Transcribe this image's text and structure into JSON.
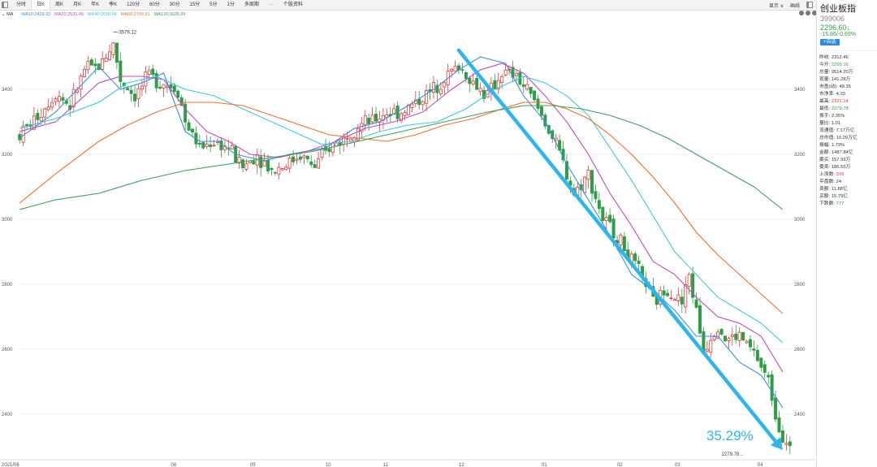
{
  "toolbar": {
    "tabs": [
      "分时",
      "日K",
      "周K",
      "月K",
      "年K",
      "季K",
      "120分",
      "60分",
      "30分",
      "15分",
      "5分",
      "1分",
      "多周期",
      "···",
      "个股资料"
    ],
    "active_index": 1,
    "right_items": [
      "显示 ∨",
      "画线"
    ]
  },
  "indicator": "MA",
  "ma_legend": [
    {
      "label": "MA10:2429.32",
      "color": "#3a8fd9"
    },
    {
      "label": "MA20:2531.49",
      "color": "#c04cc0"
    },
    {
      "label": "MA40:2618.94",
      "color": "#40c8e0"
    },
    {
      "label": "MA60:2709.31",
      "color": "#f07030"
    },
    {
      "label": "MA120:3026.99",
      "color": "#3ea05a"
    }
  ],
  "side": {
    "name": "创业板指",
    "code": "399006",
    "price": "2296.60↓",
    "change": "-15.86/-0.69%",
    "button": "+自选",
    "stats": [
      {
        "label": "昨收:",
        "value": "2312.46",
        "color": "normal"
      },
      {
        "label": "今开:",
        "value": "2299.16",
        "color": "green"
      },
      {
        "label": "总量:",
        "value": "9514.20万",
        "color": "normal"
      },
      {
        "label": "现量:",
        "value": "141.28万",
        "color": "normal"
      },
      {
        "label": "市盈(动):",
        "value": "48.35",
        "color": "normal"
      },
      {
        "label": "市净率:",
        "value": "4.33",
        "color": "normal"
      },
      {
        "label": "最高:",
        "value": "2321.14",
        "color": "red"
      },
      {
        "label": "最低:",
        "value": "2279.78",
        "color": "green"
      },
      {
        "label": "换手:",
        "value": "2.35%",
        "color": "normal"
      },
      {
        "label": "量比:",
        "value": "1.01",
        "color": "normal"
      },
      {
        "label": "流通值:",
        "value": "7.17万亿",
        "color": "normal"
      },
      {
        "label": "总市值:",
        "value": "10.20万亿",
        "color": "normal"
      },
      {
        "label": "振幅:",
        "value": "1.79%",
        "color": "normal"
      },
      {
        "label": "金额:",
        "value": "1487.84亿",
        "color": "normal"
      },
      {
        "label": "委买:",
        "value": "157.99万",
        "color": "normal"
      },
      {
        "label": "委卖:",
        "value": "186.55万",
        "color": "normal"
      },
      {
        "label": "上涨数:",
        "value": "339",
        "color": "red"
      },
      {
        "label": "平盘数:",
        "value": "24",
        "color": "normal"
      },
      {
        "label": "卖额:",
        "value": "11.88亿",
        "color": "normal"
      },
      {
        "label": "买额:",
        "value": "15.79亿",
        "color": "normal"
      },
      {
        "label": "下跌数:",
        "value": "777",
        "color": "green"
      }
    ]
  },
  "chart_data": {
    "type": "candlestick",
    "y_ticks": [
      2400,
      2600,
      2800,
      3000,
      3200,
      3400
    ],
    "ylim": [
      2270,
      3620
    ],
    "x_ticks": [
      "2021/06",
      "08",
      "09",
      "10",
      "11",
      "12",
      "01",
      "02",
      "03",
      "04"
    ],
    "x_tick_index": [
      0,
      42,
      64,
      85,
      101,
      122,
      145,
      166,
      182,
      205
    ],
    "bars_count": 215,
    "high_annotation": "3576.12",
    "low_annotation": "2279.78→",
    "trend_label": "35.29%",
    "trend_start": {
      "index": 122,
      "value": 3520
    },
    "trend_end": {
      "index": 212,
      "value": 2290
    },
    "colors": {
      "up": "#e03c3c",
      "down": "#2e9e46",
      "trend": "#2eb4ef"
    },
    "ma_anchors": {
      "MA10": [
        [
          0,
          3250
        ],
        [
          10,
          3330
        ],
        [
          22,
          3470
        ],
        [
          28,
          3400
        ],
        [
          34,
          3420
        ],
        [
          40,
          3450
        ],
        [
          46,
          3270
        ],
        [
          50,
          3240
        ],
        [
          55,
          3240
        ],
        [
          60,
          3200
        ],
        [
          68,
          3180
        ],
        [
          75,
          3200
        ],
        [
          85,
          3220
        ],
        [
          93,
          3280
        ],
        [
          100,
          3300
        ],
        [
          108,
          3350
        ],
        [
          115,
          3400
        ],
        [
          122,
          3460
        ],
        [
          128,
          3500
        ],
        [
          135,
          3480
        ],
        [
          140,
          3380
        ],
        [
          146,
          3300
        ],
        [
          152,
          3170
        ],
        [
          158,
          3060
        ],
        [
          164,
          2950
        ],
        [
          170,
          2830
        ],
        [
          176,
          2780
        ],
        [
          182,
          2720
        ],
        [
          188,
          2640
        ],
        [
          194,
          2640
        ],
        [
          200,
          2560
        ],
        [
          206,
          2520
        ],
        [
          212,
          2420
        ]
      ],
      "MA20": [
        [
          0,
          3270
        ],
        [
          10,
          3300
        ],
        [
          22,
          3420
        ],
        [
          28,
          3440
        ],
        [
          34,
          3440
        ],
        [
          40,
          3430
        ],
        [
          46,
          3340
        ],
        [
          52,
          3270
        ],
        [
          58,
          3240
        ],
        [
          64,
          3200
        ],
        [
          72,
          3190
        ],
        [
          80,
          3210
        ],
        [
          88,
          3240
        ],
        [
          96,
          3280
        ],
        [
          104,
          3300
        ],
        [
          112,
          3330
        ],
        [
          120,
          3400
        ],
        [
          128,
          3460
        ],
        [
          134,
          3480
        ],
        [
          140,
          3450
        ],
        [
          146,
          3380
        ],
        [
          152,
          3300
        ],
        [
          158,
          3200
        ],
        [
          164,
          3080
        ],
        [
          170,
          2980
        ],
        [
          176,
          2870
        ],
        [
          182,
          2830
        ],
        [
          188,
          2760
        ],
        [
          194,
          2700
        ],
        [
          200,
          2680
        ],
        [
          206,
          2640
        ],
        [
          212,
          2530
        ]
      ],
      "MA40": [
        [
          0,
          3280
        ],
        [
          10,
          3310
        ],
        [
          22,
          3360
        ],
        [
          30,
          3420
        ],
        [
          38,
          3440
        ],
        [
          46,
          3400
        ],
        [
          54,
          3380
        ],
        [
          60,
          3350
        ],
        [
          68,
          3310
        ],
        [
          76,
          3270
        ],
        [
          84,
          3230
        ],
        [
          92,
          3240
        ],
        [
          100,
          3270
        ],
        [
          108,
          3290
        ],
        [
          116,
          3300
        ],
        [
          124,
          3340
        ],
        [
          132,
          3400
        ],
        [
          140,
          3440
        ],
        [
          146,
          3420
        ],
        [
          152,
          3380
        ],
        [
          158,
          3320
        ],
        [
          164,
          3220
        ],
        [
          170,
          3120
        ],
        [
          176,
          3010
        ],
        [
          182,
          2900
        ],
        [
          188,
          2830
        ],
        [
          194,
          2760
        ],
        [
          200,
          2720
        ],
        [
          206,
          2680
        ],
        [
          212,
          2620
        ]
      ],
      "MA60": [
        [
          0,
          3050
        ],
        [
          10,
          3140
        ],
        [
          22,
          3240
        ],
        [
          30,
          3290
        ],
        [
          38,
          3330
        ],
        [
          46,
          3360
        ],
        [
          54,
          3360
        ],
        [
          62,
          3350
        ],
        [
          70,
          3320
        ],
        [
          78,
          3290
        ],
        [
          86,
          3260
        ],
        [
          94,
          3250
        ],
        [
          102,
          3240
        ],
        [
          110,
          3260
        ],
        [
          118,
          3290
        ],
        [
          126,
          3310
        ],
        [
          134,
          3340
        ],
        [
          140,
          3360
        ],
        [
          146,
          3360
        ],
        [
          152,
          3340
        ],
        [
          158,
          3310
        ],
        [
          164,
          3260
        ],
        [
          170,
          3200
        ],
        [
          176,
          3130
        ],
        [
          182,
          3050
        ],
        [
          188,
          2960
        ],
        [
          194,
          2890
        ],
        [
          200,
          2830
        ],
        [
          206,
          2770
        ],
        [
          212,
          2710
        ]
      ],
      "MA120": [
        [
          0,
          3030
        ],
        [
          10,
          3060
        ],
        [
          22,
          3080
        ],
        [
          34,
          3120
        ],
        [
          46,
          3150
        ],
        [
          58,
          3170
        ],
        [
          70,
          3190
        ],
        [
          82,
          3210
        ],
        [
          94,
          3240
        ],
        [
          106,
          3270
        ],
        [
          118,
          3300
        ],
        [
          130,
          3330
        ],
        [
          140,
          3350
        ],
        [
          148,
          3350
        ],
        [
          156,
          3340
        ],
        [
          164,
          3320
        ],
        [
          172,
          3290
        ],
        [
          180,
          3250
        ],
        [
          188,
          3200
        ],
        [
          196,
          3150
        ],
        [
          204,
          3100
        ],
        [
          212,
          3030
        ]
      ]
    },
    "price_anchors": [
      [
        0,
        3260
      ],
      [
        6,
        3330
      ],
      [
        10,
        3390
      ],
      [
        14,
        3350
      ],
      [
        18,
        3460
      ],
      [
        22,
        3470
      ],
      [
        26,
        3540
      ],
      [
        28,
        3430
      ],
      [
        32,
        3380
      ],
      [
        36,
        3440
      ],
      [
        40,
        3420
      ],
      [
        44,
        3400
      ],
      [
        46,
        3300
      ],
      [
        50,
        3220
      ],
      [
        54,
        3240
      ],
      [
        58,
        3220
      ],
      [
        62,
        3160
      ],
      [
        66,
        3200
      ],
      [
        70,
        3150
      ],
      [
        74,
        3170
      ],
      [
        78,
        3200
      ],
      [
        82,
        3160
      ],
      [
        86,
        3220
      ],
      [
        90,
        3250
      ],
      [
        94,
        3290
      ],
      [
        98,
        3300
      ],
      [
        102,
        3330
      ],
      [
        106,
        3330
      ],
      [
        110,
        3360
      ],
      [
        114,
        3390
      ],
      [
        118,
        3440
      ],
      [
        122,
        3470
      ],
      [
        126,
        3420
      ],
      [
        130,
        3380
      ],
      [
        134,
        3450
      ],
      [
        138,
        3440
      ],
      [
        142,
        3380
      ],
      [
        146,
        3300
      ],
      [
        150,
        3200
      ],
      [
        154,
        3080
      ],
      [
        158,
        3140
      ],
      [
        162,
        3000
      ],
      [
        166,
        2950
      ],
      [
        170,
        2870
      ],
      [
        174,
        2800
      ],
      [
        176,
        2740
      ],
      [
        180,
        2790
      ],
      [
        184,
        2740
      ],
      [
        186,
        2830
      ],
      [
        190,
        2600
      ],
      [
        194,
        2680
      ],
      [
        196,
        2630
      ],
      [
        200,
        2640
      ],
      [
        204,
        2590
      ],
      [
        208,
        2500
      ],
      [
        211,
        2360
      ],
      [
        214,
        2296
      ]
    ]
  }
}
